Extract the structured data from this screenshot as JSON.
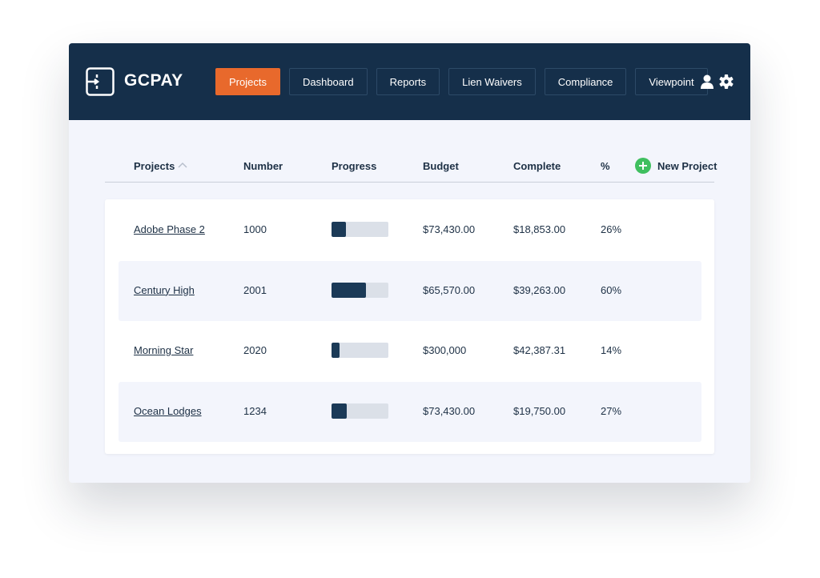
{
  "header": {
    "brand": "GCPAY",
    "nav": [
      "Projects",
      "Dashboard",
      "Reports",
      "Lien Waivers",
      "Compliance",
      "Viewpoint"
    ]
  },
  "table": {
    "columns": [
      "Projects",
      "Number",
      "Progress",
      "Budget",
      "Complete",
      "%"
    ],
    "new_project": "New Project",
    "rows": [
      {
        "name": "Adobe Phase 2",
        "number": "1000",
        "budget": "$73,430.00",
        "complete": "$18,853.00",
        "progress": {
          "value": 26,
          "label": "26%"
        }
      },
      {
        "name": "Century High",
        "number": "2001",
        "budget": "$65,570.00",
        "complete": "$39,263.00",
        "progress": {
          "value": 60,
          "label": "60%"
        }
      },
      {
        "name": "Morning Star",
        "number": "2020",
        "budget": "$300,000",
        "complete": "$42,387.31",
        "progress": {
          "value": 14,
          "label": "14%"
        }
      },
      {
        "name": "Ocean Lodges",
        "number": "1234",
        "budget": "$73,430.00",
        "complete": "$19,750.00",
        "progress": {
          "value": 27,
          "label": "27%"
        }
      }
    ]
  }
}
